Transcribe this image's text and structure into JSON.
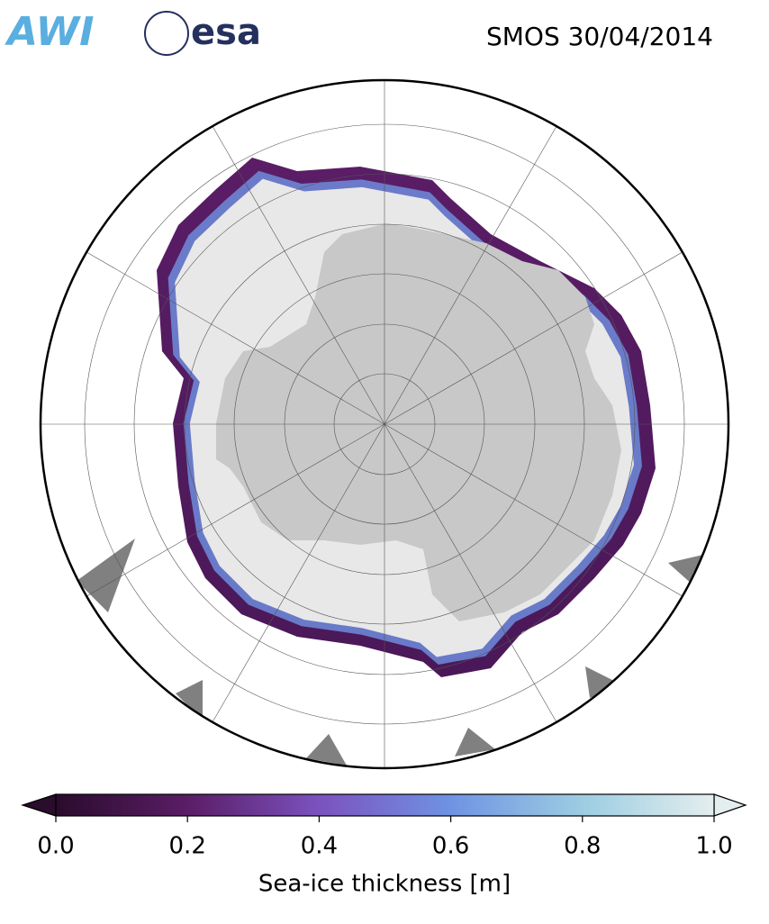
{
  "header": {
    "logos": [
      "AWI",
      "esa"
    ],
    "title": "SMOS 30/04/2014"
  },
  "colorbar": {
    "label": "Sea-ice thickness [m]",
    "lim": [
      0,
      1
    ],
    "ticks": [
      {
        "value": 0,
        "label": "0.0"
      },
      {
        "value": 0.2,
        "label": "0.2"
      },
      {
        "value": 0.4,
        "label": "0.4"
      },
      {
        "value": 0.6,
        "label": "0.6"
      },
      {
        "value": 0.8,
        "label": "0.8"
      },
      {
        "value": 1,
        "label": "1.0"
      }
    ],
    "colors": [
      "#2a0c2c",
      "#5a1d66",
      "#7b52bf",
      "#6f93e3",
      "#9ccde2",
      "#e4eeee"
    ]
  }
}
